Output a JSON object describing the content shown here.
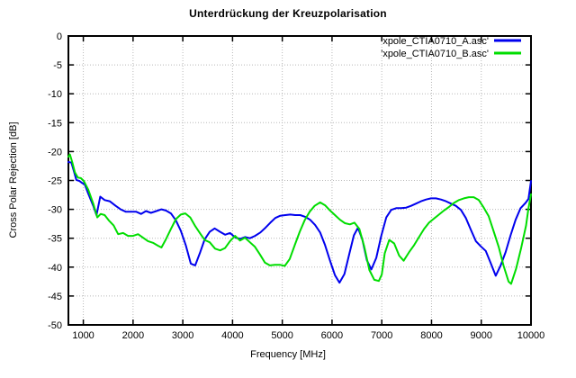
{
  "chart_data": {
    "type": "line",
    "title": "Unterdrückung der Kreuzpolarisation",
    "xlabel": "Frequency [MHz]",
    "ylabel": "Cross Polar Rejection [dB]",
    "xlim": [
      700,
      10000
    ],
    "ylim": [
      -50,
      0
    ],
    "x_ticks": [
      1000,
      2000,
      3000,
      4000,
      5000,
      6000,
      7000,
      8000,
      9000,
      10000
    ],
    "y_ticks": [
      0,
      -5,
      -10,
      -15,
      -20,
      -25,
      -30,
      -35,
      -40,
      -45,
      -50
    ],
    "grid": true,
    "legend_position": "top-right-inside",
    "colors": {
      "background": "#ffffff",
      "axis": "#000000",
      "grid": "#b8b8b8",
      "series_a": "#0000ee",
      "series_b": "#00dd00"
    },
    "series": [
      {
        "name": "'xpole_CTIA0710_A.asc'",
        "color": "#0000ee",
        "points": [
          [
            700,
            -21.8
          ],
          [
            760,
            -21.9
          ],
          [
            810,
            -23.4
          ],
          [
            860,
            -24.9
          ],
          [
            920,
            -25.1
          ],
          [
            970,
            -25.4
          ],
          [
            1030,
            -25.7
          ],
          [
            1100,
            -27.3
          ],
          [
            1200,
            -29.4
          ],
          [
            1265,
            -31.0
          ],
          [
            1340,
            -27.8
          ],
          [
            1430,
            -28.4
          ],
          [
            1530,
            -28.6
          ],
          [
            1650,
            -29.4
          ],
          [
            1750,
            -30.0
          ],
          [
            1850,
            -30.4
          ],
          [
            1950,
            -30.4
          ],
          [
            2060,
            -30.4
          ],
          [
            2160,
            -30.8
          ],
          [
            2260,
            -30.3
          ],
          [
            2360,
            -30.6
          ],
          [
            2470,
            -30.3
          ],
          [
            2570,
            -30.0
          ],
          [
            2660,
            -30.2
          ],
          [
            2760,
            -30.7
          ],
          [
            2860,
            -31.9
          ],
          [
            2960,
            -33.7
          ],
          [
            3060,
            -36.2
          ],
          [
            3160,
            -39.4
          ],
          [
            3250,
            -39.7
          ],
          [
            3350,
            -37.4
          ],
          [
            3440,
            -35.2
          ],
          [
            3540,
            -33.9
          ],
          [
            3640,
            -33.3
          ],
          [
            3750,
            -33.9
          ],
          [
            3850,
            -34.4
          ],
          [
            3950,
            -34.1
          ],
          [
            4060,
            -34.9
          ],
          [
            4160,
            -35.1
          ],
          [
            4250,
            -34.8
          ],
          [
            4350,
            -35.0
          ],
          [
            4450,
            -34.6
          ],
          [
            4560,
            -34.0
          ],
          [
            4660,
            -33.2
          ],
          [
            4760,
            -32.3
          ],
          [
            4860,
            -31.5
          ],
          [
            4960,
            -31.1
          ],
          [
            5060,
            -31.0
          ],
          [
            5160,
            -30.9
          ],
          [
            5260,
            -31.0
          ],
          [
            5360,
            -31.0
          ],
          [
            5460,
            -31.3
          ],
          [
            5560,
            -31.8
          ],
          [
            5660,
            -32.7
          ],
          [
            5760,
            -34.0
          ],
          [
            5860,
            -36.2
          ],
          [
            5960,
            -38.9
          ],
          [
            6060,
            -41.4
          ],
          [
            6150,
            -42.7
          ],
          [
            6250,
            -41.2
          ],
          [
            6350,
            -37.6
          ],
          [
            6440,
            -34.5
          ],
          [
            6520,
            -33.2
          ],
          [
            6610,
            -35.2
          ],
          [
            6700,
            -38.8
          ],
          [
            6790,
            -40.4
          ],
          [
            6890,
            -38.4
          ],
          [
            6990,
            -34.6
          ],
          [
            7090,
            -31.4
          ],
          [
            7190,
            -30.1
          ],
          [
            7290,
            -29.8
          ],
          [
            7390,
            -29.8
          ],
          [
            7490,
            -29.7
          ],
          [
            7590,
            -29.4
          ],
          [
            7690,
            -29.0
          ],
          [
            7790,
            -28.6
          ],
          [
            7890,
            -28.3
          ],
          [
            7990,
            -28.1
          ],
          [
            8090,
            -28.1
          ],
          [
            8190,
            -28.3
          ],
          [
            8290,
            -28.6
          ],
          [
            8390,
            -29.0
          ],
          [
            8490,
            -29.4
          ],
          [
            8590,
            -30.1
          ],
          [
            8690,
            -31.5
          ],
          [
            8790,
            -33.5
          ],
          [
            8890,
            -35.5
          ],
          [
            8990,
            -36.4
          ],
          [
            9090,
            -37.2
          ],
          [
            9190,
            -39.3
          ],
          [
            9290,
            -41.5
          ],
          [
            9390,
            -39.7
          ],
          [
            9490,
            -37.4
          ],
          [
            9590,
            -34.5
          ],
          [
            9690,
            -31.8
          ],
          [
            9790,
            -29.8
          ],
          [
            9890,
            -28.9
          ],
          [
            9950,
            -28.2
          ],
          [
            10000,
            -25.1
          ]
        ]
      },
      {
        "name": "'xpole_CTIA0710_B.asc'",
        "color": "#00dd00",
        "points": [
          [
            700,
            -20.9
          ],
          [
            730,
            -20.5
          ],
          [
            780,
            -21.9
          ],
          [
            830,
            -23.6
          ],
          [
            890,
            -24.5
          ],
          [
            950,
            -24.6
          ],
          [
            1010,
            -25.1
          ],
          [
            1100,
            -26.6
          ],
          [
            1200,
            -29.0
          ],
          [
            1280,
            -31.4
          ],
          [
            1350,
            -30.8
          ],
          [
            1430,
            -31.0
          ],
          [
            1510,
            -31.9
          ],
          [
            1610,
            -32.8
          ],
          [
            1700,
            -34.3
          ],
          [
            1800,
            -34.1
          ],
          [
            1900,
            -34.6
          ],
          [
            2000,
            -34.6
          ],
          [
            2100,
            -34.3
          ],
          [
            2200,
            -34.9
          ],
          [
            2300,
            -35.5
          ],
          [
            2400,
            -35.8
          ],
          [
            2500,
            -36.3
          ],
          [
            2570,
            -36.6
          ],
          [
            2660,
            -35.2
          ],
          [
            2760,
            -33.4
          ],
          [
            2860,
            -31.7
          ],
          [
            2960,
            -30.9
          ],
          [
            3050,
            -30.7
          ],
          [
            3150,
            -31.4
          ],
          [
            3250,
            -32.9
          ],
          [
            3350,
            -34.2
          ],
          [
            3440,
            -35.3
          ],
          [
            3540,
            -35.7
          ],
          [
            3650,
            -36.8
          ],
          [
            3750,
            -37.1
          ],
          [
            3850,
            -36.7
          ],
          [
            3950,
            -35.5
          ],
          [
            4050,
            -34.6
          ],
          [
            4150,
            -35.4
          ],
          [
            4250,
            -34.9
          ],
          [
            4350,
            -35.7
          ],
          [
            4450,
            -36.5
          ],
          [
            4550,
            -37.8
          ],
          [
            4650,
            -39.2
          ],
          [
            4750,
            -39.7
          ],
          [
            4850,
            -39.6
          ],
          [
            4950,
            -39.6
          ],
          [
            5050,
            -39.8
          ],
          [
            5150,
            -38.6
          ],
          [
            5250,
            -36.2
          ],
          [
            5350,
            -33.9
          ],
          [
            5450,
            -31.9
          ],
          [
            5550,
            -30.4
          ],
          [
            5650,
            -29.4
          ],
          [
            5760,
            -28.8
          ],
          [
            5860,
            -29.3
          ],
          [
            5960,
            -30.2
          ],
          [
            6060,
            -31.0
          ],
          [
            6160,
            -31.8
          ],
          [
            6260,
            -32.4
          ],
          [
            6360,
            -32.6
          ],
          [
            6450,
            -32.3
          ],
          [
            6550,
            -33.4
          ],
          [
            6650,
            -36.5
          ],
          [
            6750,
            -40.5
          ],
          [
            6850,
            -42.2
          ],
          [
            6940,
            -42.4
          ],
          [
            7000,
            -41.3
          ],
          [
            7060,
            -37.6
          ],
          [
            7150,
            -35.3
          ],
          [
            7250,
            -35.9
          ],
          [
            7350,
            -38.0
          ],
          [
            7440,
            -38.9
          ],
          [
            7550,
            -37.4
          ],
          [
            7650,
            -36.2
          ],
          [
            7750,
            -34.8
          ],
          [
            7850,
            -33.4
          ],
          [
            7950,
            -32.3
          ],
          [
            8050,
            -31.6
          ],
          [
            8150,
            -30.9
          ],
          [
            8250,
            -30.2
          ],
          [
            8350,
            -29.6
          ],
          [
            8450,
            -28.9
          ],
          [
            8550,
            -28.4
          ],
          [
            8650,
            -28.1
          ],
          [
            8750,
            -27.9
          ],
          [
            8850,
            -27.9
          ],
          [
            8950,
            -28.4
          ],
          [
            9050,
            -29.7
          ],
          [
            9150,
            -31.2
          ],
          [
            9250,
            -33.8
          ],
          [
            9350,
            -36.5
          ],
          [
            9450,
            -39.8
          ],
          [
            9550,
            -42.5
          ],
          [
            9600,
            -42.9
          ],
          [
            9700,
            -40.3
          ],
          [
            9800,
            -36.8
          ],
          [
            9900,
            -32.8
          ],
          [
            9950,
            -29.8
          ],
          [
            10000,
            -27.4
          ]
        ]
      }
    ]
  }
}
